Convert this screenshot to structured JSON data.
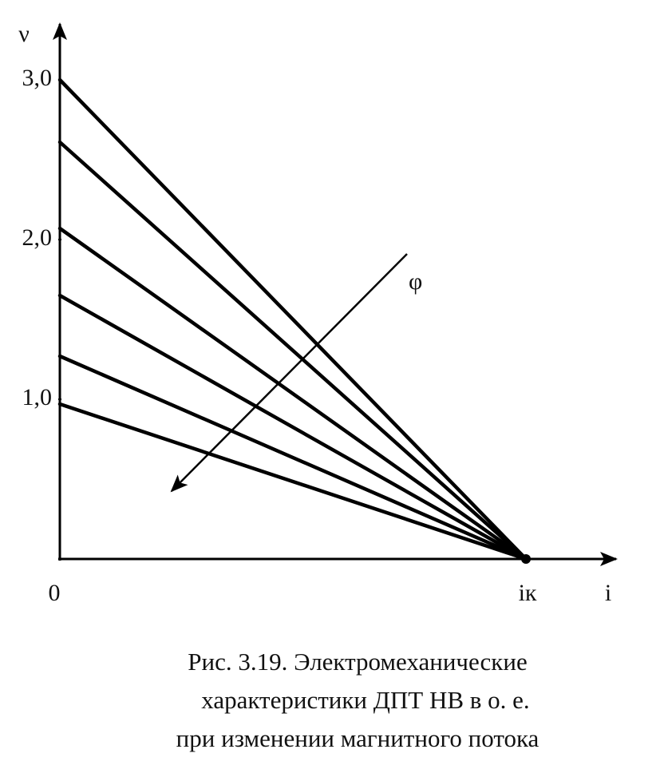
{
  "chart_data": {
    "type": "line",
    "x": [
      0,
      1
    ],
    "xlim": [
      0,
      1.19
    ],
    "ylim": [
      0,
      3.35
    ],
    "xticks": [
      {
        "value": 0,
        "label": "0"
      },
      {
        "value": 1,
        "label": "iк"
      }
    ],
    "yticks": [
      {
        "value": 1,
        "label": "1,0"
      },
      {
        "value": 2,
        "label": "2,0"
      },
      {
        "value": 3,
        "label": "3,0"
      }
    ],
    "x_label": "i",
    "y_label": "ν",
    "annotation": "φ",
    "series": [
      {
        "color": "#000000",
        "values": [
          3.0,
          0
        ]
      },
      {
        "color": "#000000",
        "values": [
          2.61,
          0
        ]
      },
      {
        "color": "#000000",
        "values": [
          2.07,
          0
        ]
      },
      {
        "color": "#000000",
        "values": [
          1.65,
          0
        ]
      },
      {
        "color": "#000000",
        "values": [
          1.27,
          0
        ]
      },
      {
        "color": "#000000",
        "values": [
          0.97,
          0
        ]
      }
    ],
    "caption": [
      "Рис. 3.19. Электромеханические",
      "характеристики ДПТ НВ в о. е.",
      "при изменении магнитного потока"
    ]
  }
}
